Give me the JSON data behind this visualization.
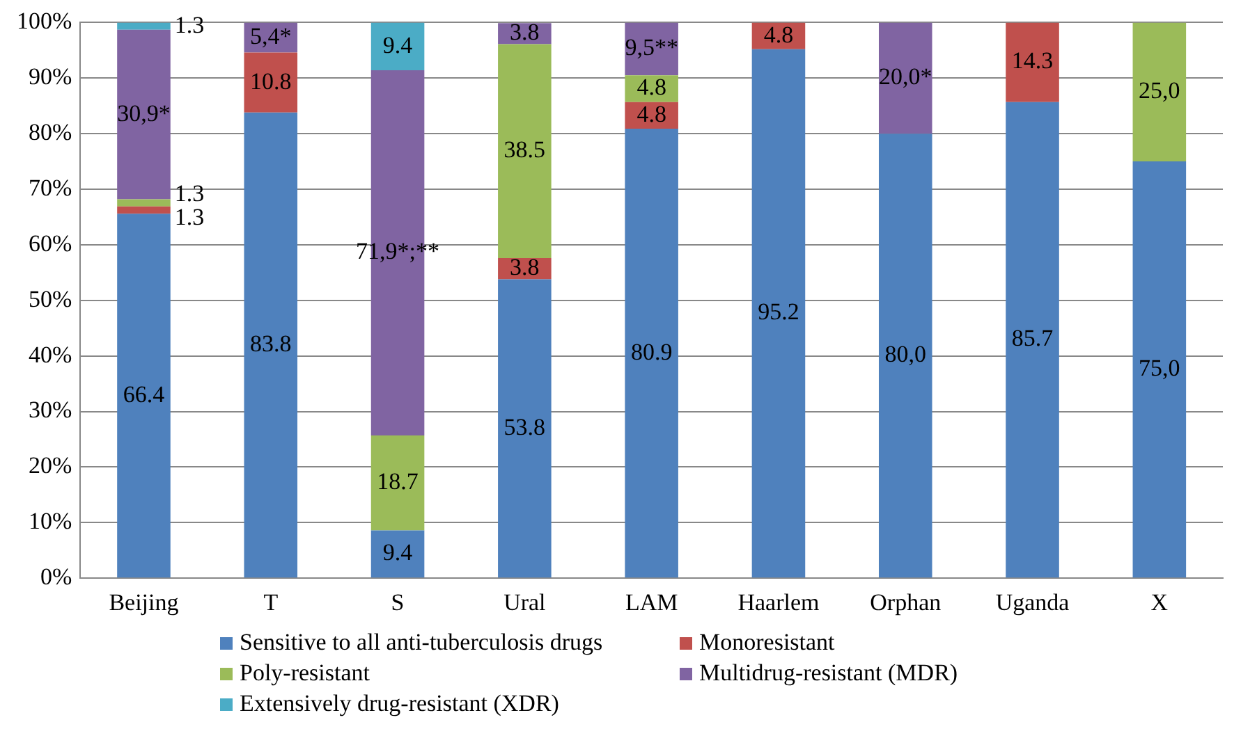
{
  "chart_data": {
    "type": "bar",
    "stacked": true,
    "categories": [
      "Beijing",
      "T",
      "S",
      "Ural",
      "LAM",
      "Haarlem",
      "Orphan",
      "Uganda",
      "X"
    ],
    "series": [
      {
        "name": "Sensitive to all anti-tuberculosis drugs",
        "color": "#4f81bd",
        "values": [
          65.6,
          83.8,
          8.6,
          53.8,
          80.9,
          95.2,
          80.0,
          85.7,
          75.0
        ],
        "value_labels": [
          null,
          "83.8",
          null,
          "53.8",
          "80.9",
          "95.2",
          "80,0",
          "85.7",
          "75,0"
        ]
      },
      {
        "name": "Monoresistant",
        "color": "#c0504d",
        "values": [
          1.3,
          10.8,
          null,
          3.8,
          4.8,
          4.8,
          null,
          14.3,
          null
        ],
        "value_labels": [
          "1.3",
          "10.8",
          null,
          "3.8",
          "4.8",
          "4.8",
          null,
          "14.3",
          null
        ]
      },
      {
        "name": "Poly-resistant",
        "color": "#9bbb59",
        "values": [
          1.3,
          null,
          17.1,
          38.5,
          4.8,
          null,
          null,
          null,
          25.0
        ],
        "value_labels": [
          "1.3",
          null,
          null,
          "38.5",
          "4.8",
          null,
          null,
          null,
          "25,0"
        ]
      },
      {
        "name": "Multidrug-resistant (MDR)",
        "color": "#8064a2",
        "values": [
          30.5,
          5.4,
          65.7,
          3.8,
          9.5,
          null,
          20.0,
          null,
          null
        ],
        "value_labels": [
          null,
          "5,4*",
          null,
          "3.8",
          "9,5**",
          null,
          "20,0*",
          null,
          null
        ]
      },
      {
        "name": "Extensively drug-resistant (XDR)",
        "color": "#4bacc6",
        "values": [
          1.3,
          null,
          8.6,
          null,
          null,
          null,
          null,
          null,
          null
        ],
        "value_labels": [
          "1.3",
          null,
          null,
          null,
          null,
          null,
          null,
          null,
          null
        ]
      }
    ],
    "annotations": [
      "66.4",
      "9.4",
      "18.7",
      "30,9*",
      "71,9*;**",
      "9.4"
    ],
    "ylim": [
      0,
      100
    ],
    "yticks": [
      {
        "value": 0,
        "label": "0%"
      },
      {
        "value": 10,
        "label": "10%"
      },
      {
        "value": 20,
        "label": "20%"
      },
      {
        "value": 30,
        "label": "30%"
      },
      {
        "value": 40,
        "label": "40%"
      },
      {
        "value": 50,
        "label": "50%"
      },
      {
        "value": 60,
        "label": "60%"
      },
      {
        "value": 70,
        "label": "70%"
      },
      {
        "value": 80,
        "label": "80%"
      },
      {
        "value": 90,
        "label": "90%"
      },
      {
        "value": 100,
        "label": "100%"
      }
    ],
    "grid": "y",
    "legend": "bottom"
  }
}
